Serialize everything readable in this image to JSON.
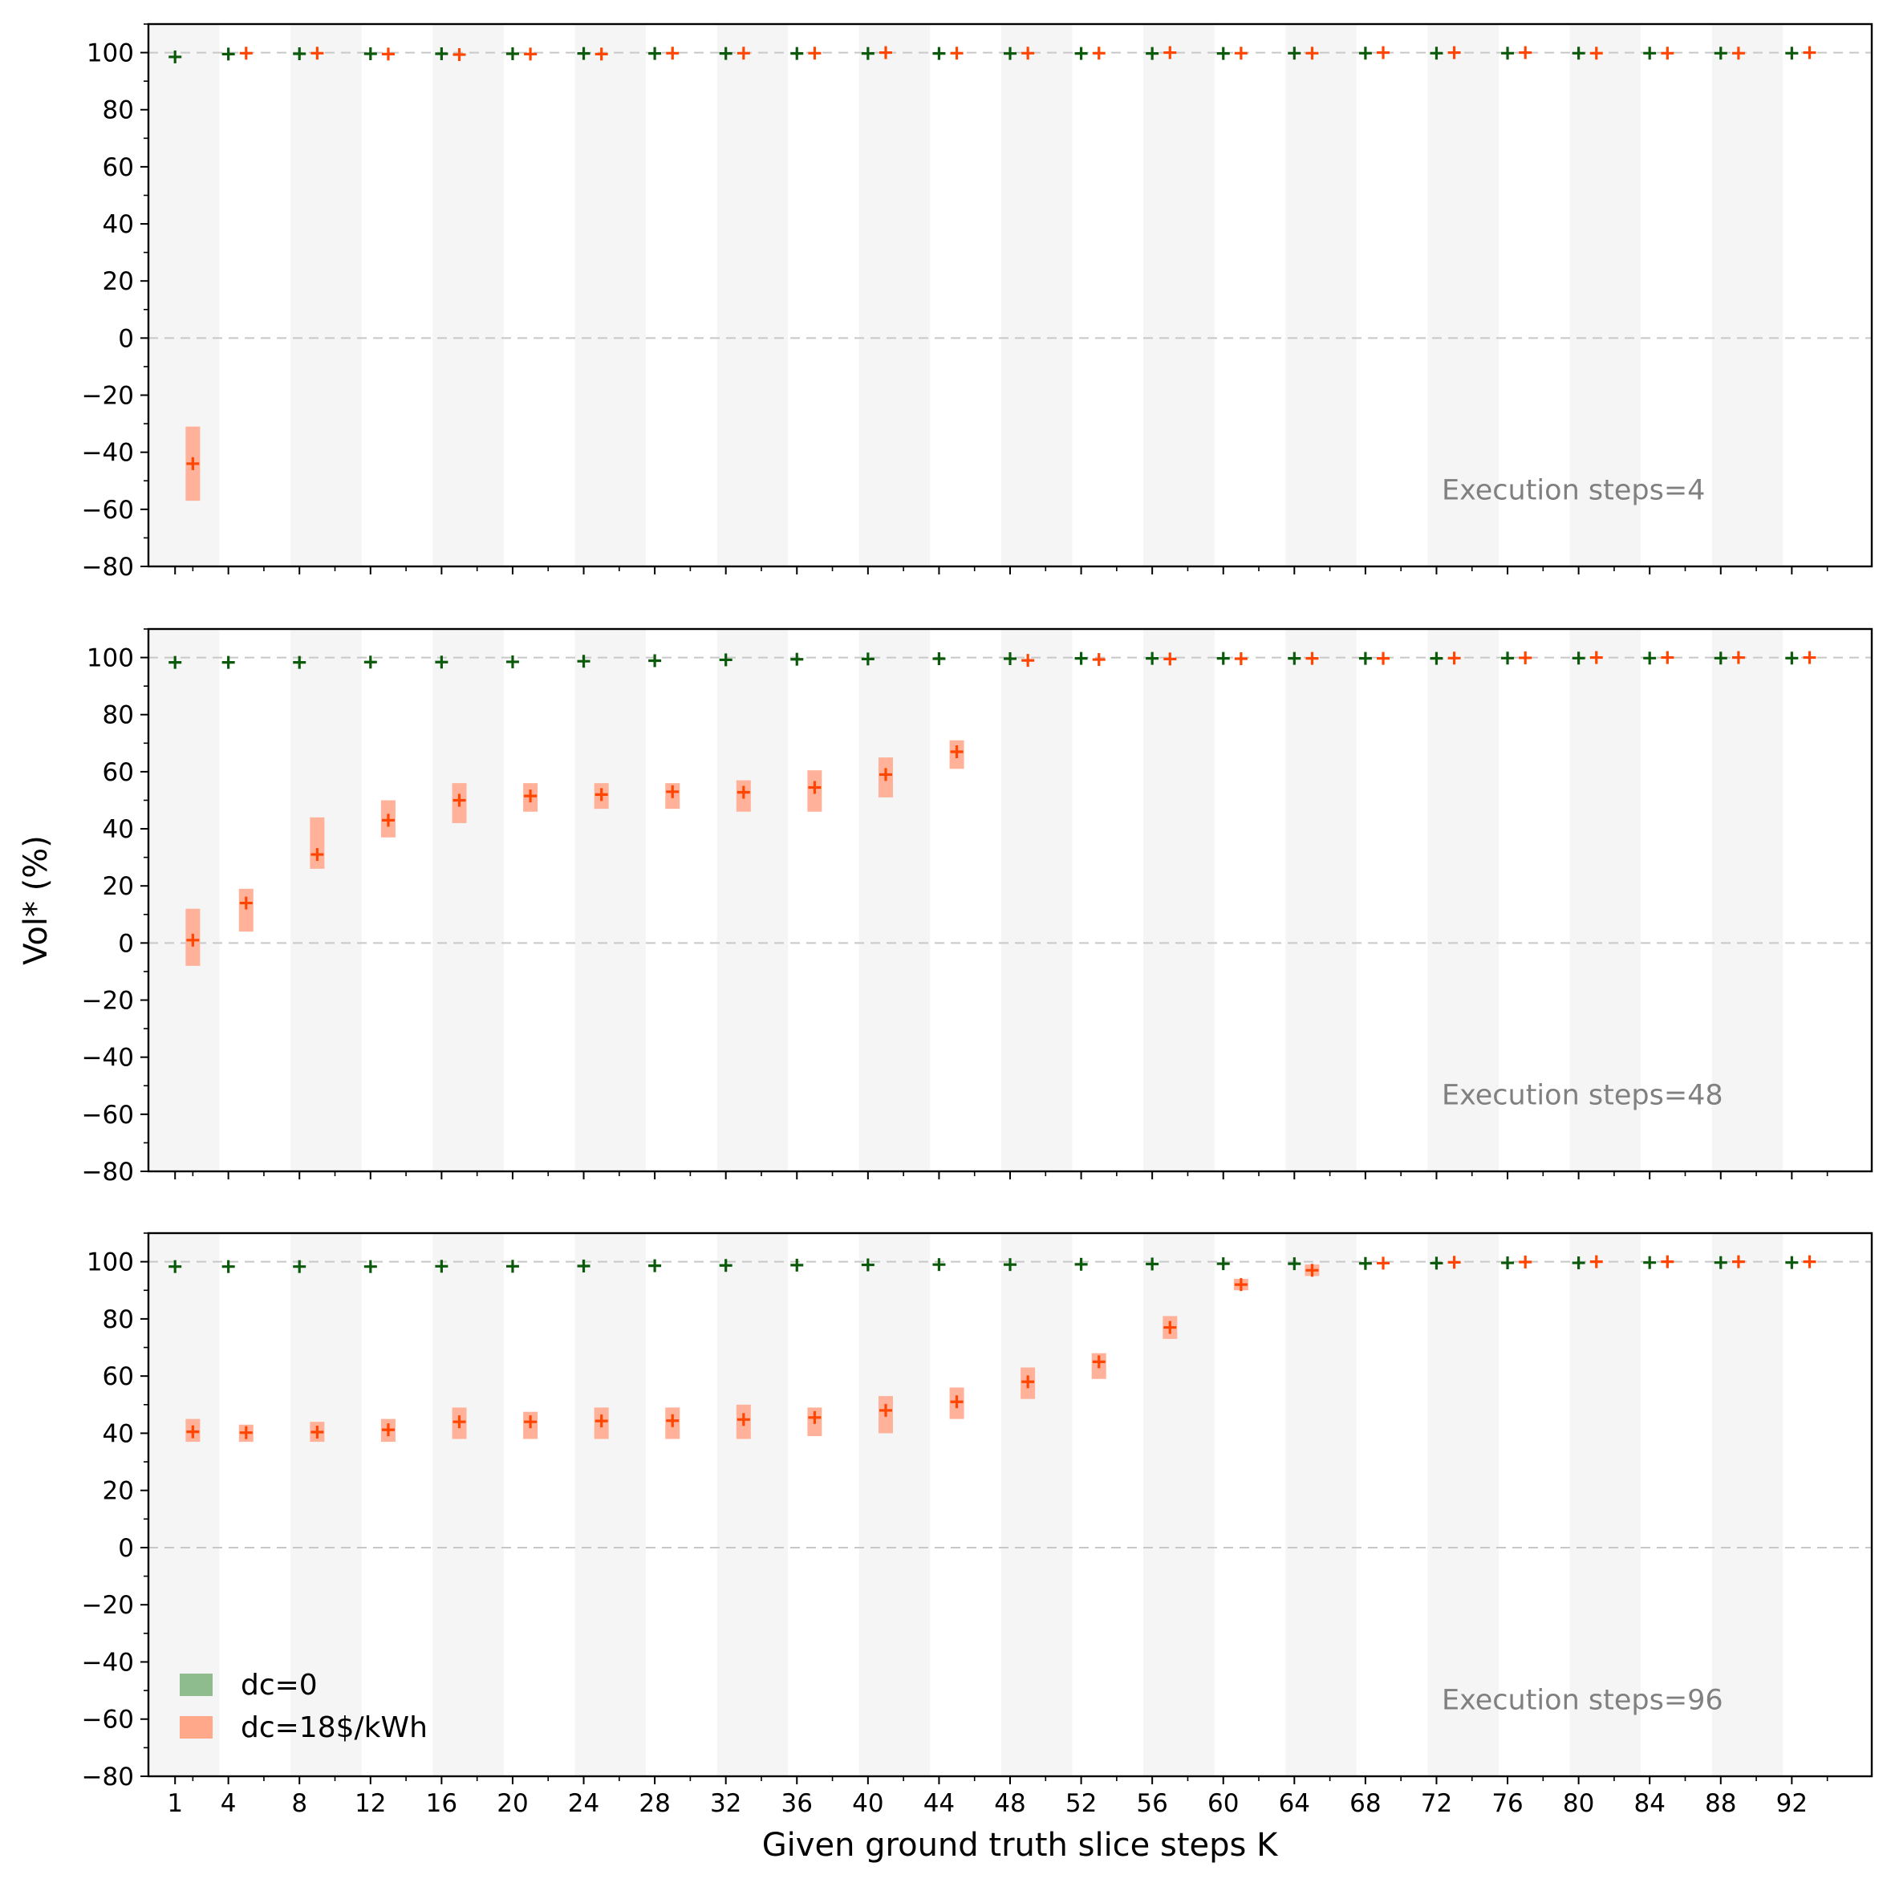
{
  "chart_data": {
    "type": "scatter",
    "xlabel": "Given ground truth slice steps K",
    "ylabel": "Vol* (%)",
    "ylim": [
      -80,
      110
    ],
    "yticks": [
      -80,
      -60,
      -40,
      -20,
      0,
      20,
      40,
      60,
      80,
      100
    ],
    "x_tick_labels": [
      "1",
      "4",
      "8",
      "12",
      "16",
      "20",
      "24",
      "28",
      "32",
      "36",
      "40",
      "44",
      "48",
      "52",
      "56",
      "60",
      "64",
      "68",
      "72",
      "76",
      "80",
      "84",
      "88",
      "92"
    ],
    "reference_lines": [
      0,
      100
    ],
    "legend": {
      "placement": "lower-left (bottom panel)",
      "entries": [
        {
          "label": "dc=0",
          "color": "#8fbc8f"
        },
        {
          "label": "dc=18$/kWh",
          "color": "#ffa98a"
        }
      ]
    },
    "colors": {
      "green_marker": "#0b5a0b",
      "orange_marker": "#ff4500",
      "orange_band": "#ffb299",
      "shade": "#f5f5f5",
      "annotation": "#808080"
    },
    "panels": [
      {
        "annotation": "Execution steps=4",
        "series": [
          {
            "name": "dc=0",
            "x": [
              1,
              4,
              8,
              12,
              16,
              20,
              24,
              28,
              32,
              36,
              40,
              44,
              48,
              52,
              56,
              60,
              64,
              68,
              72,
              76,
              80,
              84,
              88,
              92
            ],
            "values": [
              98.5,
              99.5,
              99.6,
              99.6,
              99.6,
              99.6,
              99.7,
              99.7,
              99.7,
              99.7,
              99.7,
              99.7,
              99.7,
              99.7,
              99.7,
              99.7,
              99.8,
              99.8,
              99.8,
              99.8,
              99.8,
              99.8,
              99.8,
              99.8
            ]
          },
          {
            "name": "dc=18$/kWh",
            "x": [
              2,
              5,
              9,
              13,
              17,
              21,
              25,
              29,
              33,
              37,
              41,
              45,
              49,
              53,
              57,
              61,
              65,
              69,
              73,
              77,
              81,
              85,
              89,
              93
            ],
            "values": [
              -44,
              99.8,
              99.8,
              99.5,
              99.3,
              99.5,
              99.5,
              99.8,
              99.8,
              99.8,
              100,
              99.8,
              99.8,
              99.8,
              100,
              99.8,
              99.8,
              100,
              100,
              100,
              99.8,
              99.8,
              99.8,
              100
            ],
            "low": [
              -57,
              99.4,
              99.4,
              99.1,
              98.9,
              99.1,
              99.1,
              99.4,
              99.4,
              99.4,
              99.6,
              99.4,
              99.4,
              99.4,
              99.6,
              99.4,
              99.4,
              99.6,
              99.6,
              99.6,
              99.4,
              99.4,
              99.4,
              99.6
            ],
            "high": [
              -31,
              100.2,
              100.2,
              99.9,
              99.7,
              99.9,
              99.9,
              100.2,
              100.2,
              100.2,
              100.4,
              100.2,
              100.2,
              100.2,
              100.4,
              100.2,
              100.2,
              100.4,
              100.4,
              100.4,
              100.2,
              100.2,
              100.2,
              100.4
            ]
          }
        ]
      },
      {
        "annotation": "Execution steps=48",
        "series": [
          {
            "name": "dc=0",
            "x": [
              1,
              4,
              8,
              12,
              16,
              20,
              24,
              28,
              32,
              36,
              40,
              44,
              48,
              52,
              56,
              60,
              64,
              68,
              72,
              76,
              80,
              84,
              88,
              92
            ],
            "values": [
              98.3,
              98.3,
              98.3,
              98.4,
              98.4,
              98.5,
              98.7,
              98.9,
              99.2,
              99.4,
              99.5,
              99.6,
              99.6,
              99.7,
              99.7,
              99.7,
              99.7,
              99.7,
              99.7,
              99.8,
              99.8,
              99.8,
              99.8,
              99.8
            ]
          },
          {
            "name": "dc=18$/kWh",
            "x": [
              2,
              5,
              9,
              13,
              17,
              21,
              25,
              29,
              33,
              37,
              41,
              45,
              49,
              53,
              57,
              61,
              65,
              69,
              73,
              77,
              81,
              85,
              89,
              93
            ],
            "values": [
              1,
              14,
              31,
              43,
              50,
              51.5,
              52,
              53,
              52.8,
              54.5,
              59,
              67,
              99,
              99.3,
              99.5,
              99.6,
              99.7,
              99.7,
              99.8,
              99.9,
              100,
              100,
              100,
              100
            ],
            "low": [
              -8,
              4,
              26,
              37,
              42,
              46,
              47,
              47,
              46,
              46,
              51,
              61,
              98.5,
              98.8,
              99,
              99.1,
              99.2,
              99.2,
              99.3,
              99.4,
              99.5,
              99.5,
              99.5,
              99.5
            ],
            "high": [
              12,
              19,
              44,
              50,
              56,
              56,
              56,
              56,
              57,
              60.5,
              65,
              71,
              99.5,
              99.8,
              100,
              100.1,
              100.2,
              100.2,
              100.3,
              100.4,
              100.5,
              100.5,
              100.5,
              100.5
            ]
          }
        ]
      },
      {
        "annotation": "Execution steps=96",
        "series": [
          {
            "name": "dc=0",
            "x": [
              1,
              4,
              8,
              12,
              16,
              20,
              24,
              28,
              32,
              36,
              40,
              44,
              48,
              52,
              56,
              60,
              64,
              68,
              72,
              76,
              80,
              84,
              88,
              92
            ],
            "values": [
              98.3,
              98.3,
              98.3,
              98.3,
              98.4,
              98.4,
              98.5,
              98.6,
              98.7,
              98.8,
              98.9,
              99,
              99,
              99.1,
              99.2,
              99.3,
              99.3,
              99.4,
              99.5,
              99.6,
              99.6,
              99.7,
              99.7,
              99.7
            ]
          },
          {
            "name": "dc=18$/kWh",
            "x": [
              2,
              5,
              9,
              13,
              17,
              21,
              25,
              29,
              33,
              37,
              41,
              45,
              49,
              53,
              57,
              61,
              65,
              69,
              73,
              77,
              81,
              85,
              89,
              93
            ],
            "values": [
              40.5,
              40.2,
              40.4,
              41.2,
              44,
              44,
              44.3,
              44.4,
              44.8,
              45.5,
              48,
              51,
              58,
              65,
              77,
              92,
              97,
              99.5,
              99.8,
              99.9,
              100,
              100,
              100,
              100
            ],
            "low": [
              37,
              37,
              37,
              37,
              38,
              38,
              38,
              38,
              38,
              39,
              40,
              45,
              52,
              59,
              73,
              90,
              95,
              99.1,
              99.4,
              99.5,
              99.6,
              99.6,
              99.6,
              99.6
            ],
            "high": [
              45,
              43,
              44,
              45,
              49,
              47.5,
              49,
              49,
              50,
              49,
              53,
              56,
              63,
              68,
              81,
              94,
              99,
              99.9,
              100.2,
              100.3,
              100.4,
              100.4,
              100.4,
              100.4
            ]
          }
        ]
      }
    ]
  }
}
